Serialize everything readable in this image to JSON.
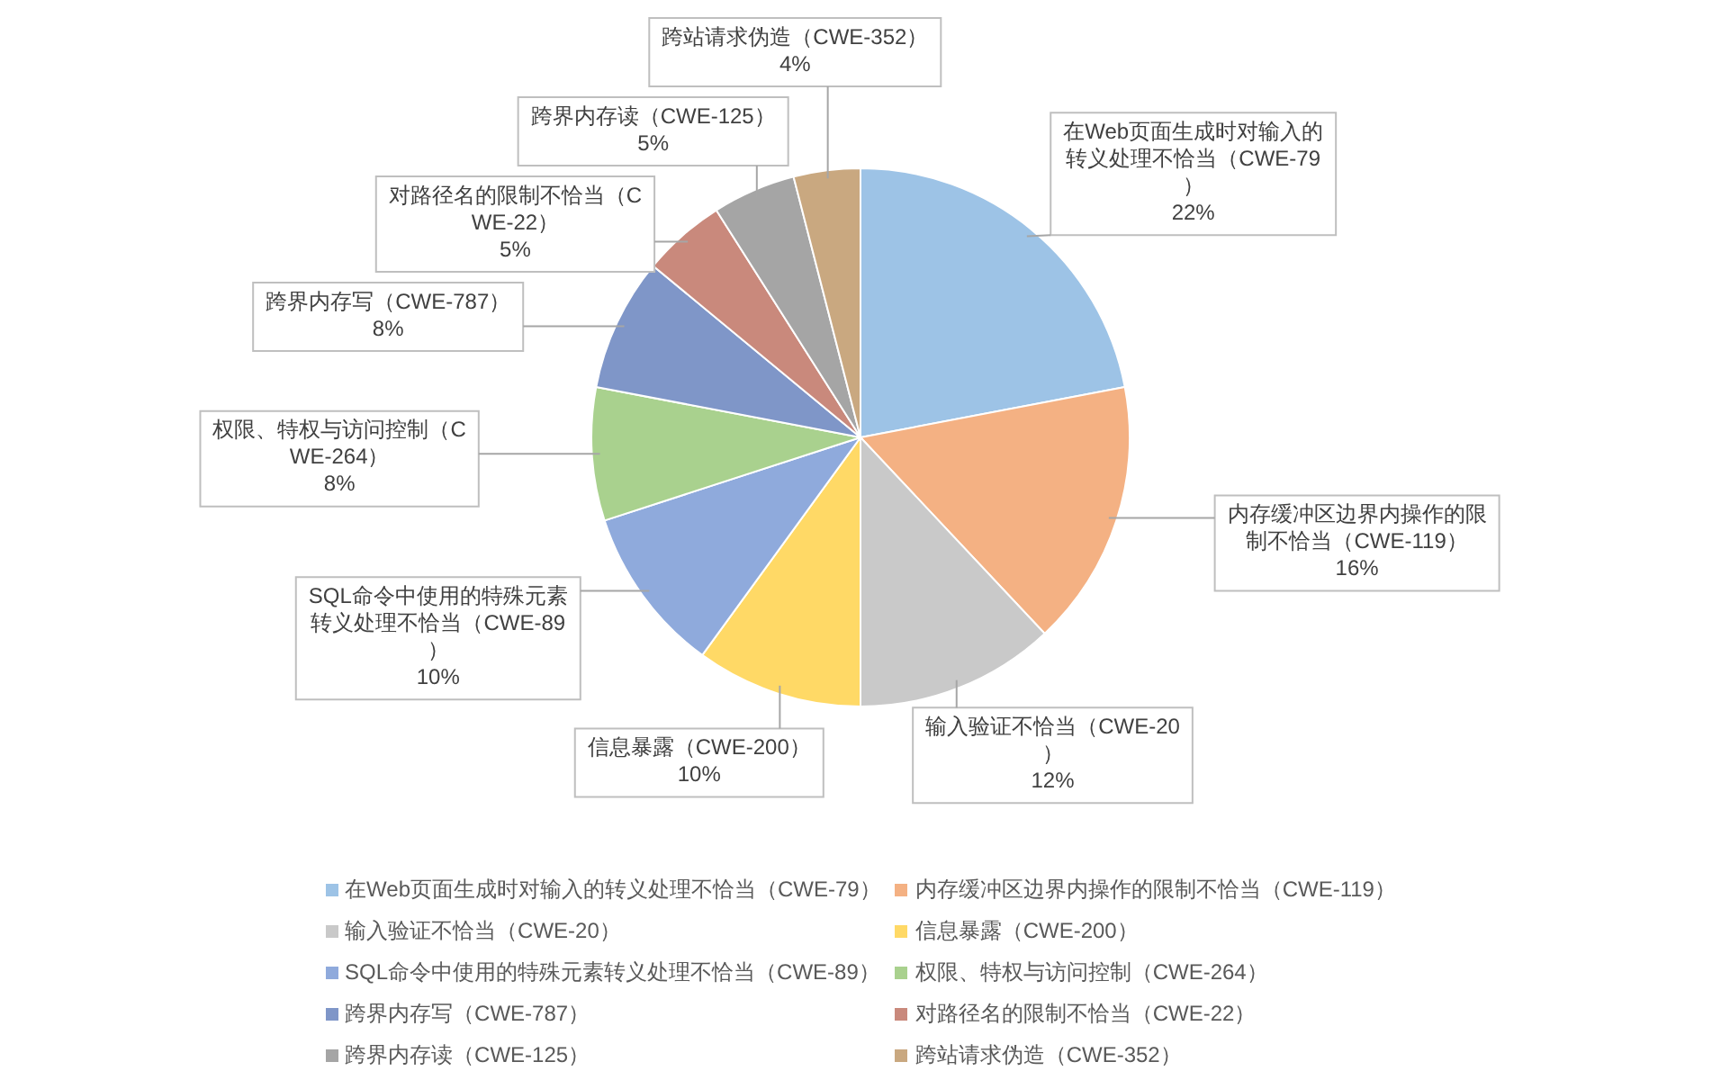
{
  "chart_data": {
    "type": "pie",
    "categories": [
      "在Web页面生成时对输入的转义处理不恰当（CWE-79）",
      "内存缓冲区边界内操作的限制不恰当（CWE-119）",
      "输入验证不恰当（CWE-20）",
      "信息暴露（CWE-200）",
      "SQL命令中使用的特殊元素转义处理不恰当（CWE-89）",
      "权限、特权与访问控制（CWE-264）",
      "跨界内存写（CWE-787）",
      "对路径名的限制不恰当（CWE-22）",
      "跨界内存读（CWE-125）",
      "跨站请求伪造（CWE-352）"
    ],
    "values": [
      22,
      16,
      12,
      10,
      10,
      8,
      8,
      5,
      5,
      4
    ],
    "colors": [
      "#9dc3e6",
      "#f4b183",
      "#c9c9c9",
      "#ffd966",
      "#8faadc",
      "#a9d18e",
      "#7f96c8",
      "#c9897c",
      "#a5a5a5",
      "#c9a880"
    ],
    "value_labels": [
      "22%",
      "16%",
      "12%",
      "10%",
      "10%",
      "8%",
      "8%",
      "5%",
      "5%",
      "4%"
    ],
    "legend": "bottom"
  }
}
